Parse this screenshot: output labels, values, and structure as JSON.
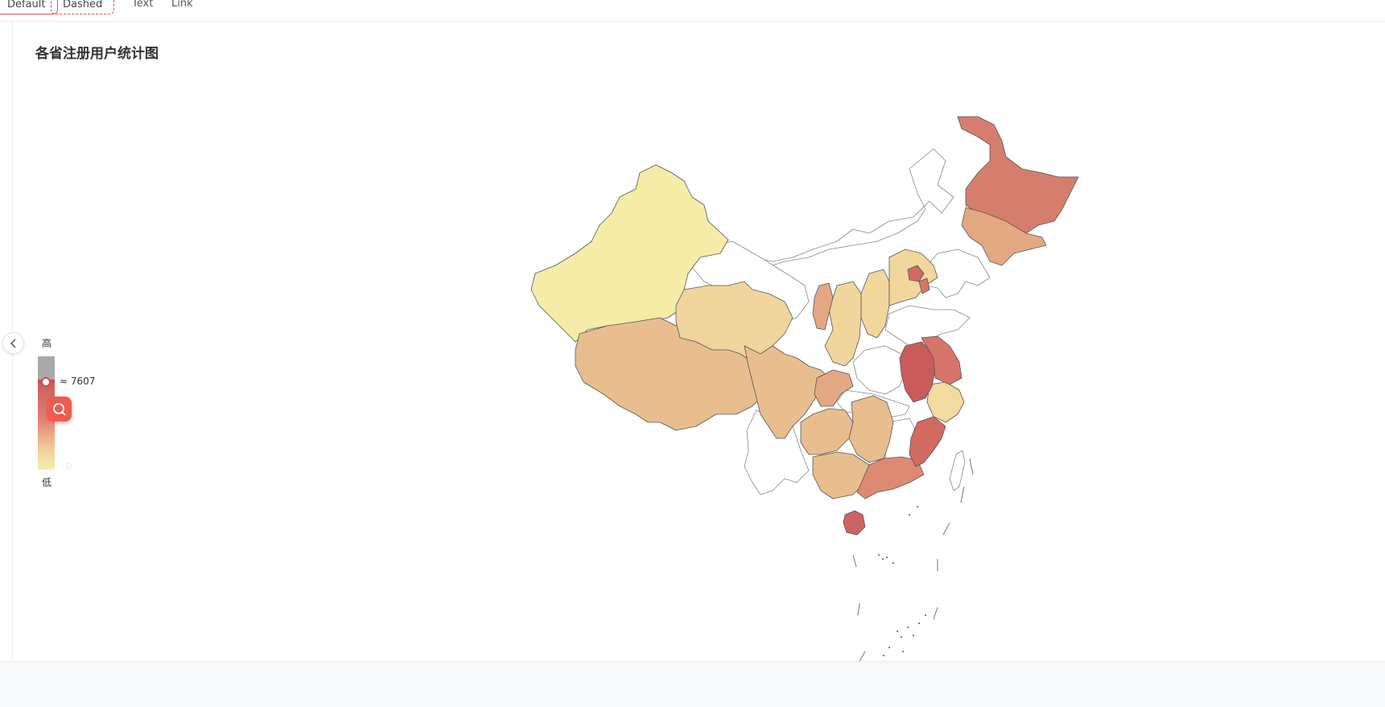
{
  "tabs": [
    {
      "label": "Default"
    },
    {
      "label": "Dashed"
    },
    {
      "label": "Text"
    },
    {
      "label": "Link"
    }
  ],
  "colors": {
    "accent": "#ee5c4f",
    "high": "#c95b5b",
    "low": "#f6eeac",
    "no_data": "#ffffff"
  },
  "chart_data": {
    "type": "map",
    "title": "各省注册用户统计图",
    "visual_map": {
      "high_label": "高",
      "low_label": "低",
      "handle_value": "≈ 7607",
      "min_value": "0"
    },
    "regions": [
      {
        "name": "新疆",
        "level": 0.05
      },
      {
        "name": "西藏",
        "level": 0.35
      },
      {
        "name": "青海",
        "level": 0.25
      },
      {
        "name": "四川",
        "level": 0.35
      },
      {
        "name": "黑龙江",
        "level": 0.75
      },
      {
        "name": "吉林",
        "level": 0.4
      },
      {
        "name": "北京",
        "level": 0.85
      },
      {
        "name": "天津",
        "level": 0.8
      },
      {
        "name": "河北",
        "level": 0.3
      },
      {
        "name": "山西",
        "level": 0.2
      },
      {
        "name": "宁夏",
        "level": 0.55
      },
      {
        "name": "陕西",
        "level": 0.2
      },
      {
        "name": "重庆",
        "level": 0.45
      },
      {
        "name": "贵州",
        "level": 0.35
      },
      {
        "name": "湖南",
        "level": 0.35
      },
      {
        "name": "广西",
        "level": 0.35
      },
      {
        "name": "广东",
        "level": 0.7
      },
      {
        "name": "海南",
        "level": 0.85
      },
      {
        "name": "福建",
        "level": 0.8
      },
      {
        "name": "浙江",
        "level": 0.15
      },
      {
        "name": "安徽",
        "level": 1.0
      },
      {
        "name": "江苏",
        "level": 0.8
      }
    ]
  }
}
